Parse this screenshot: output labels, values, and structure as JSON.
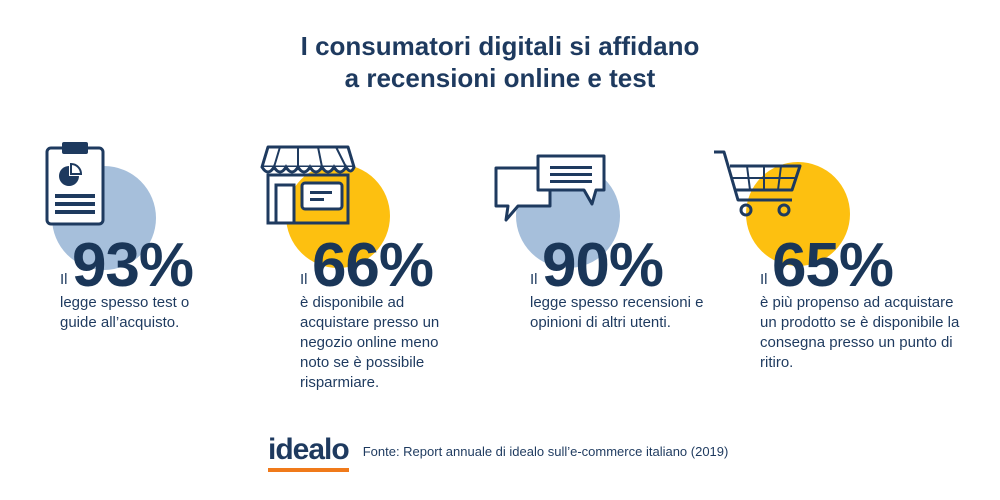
{
  "header": {
    "title_line1": "I consumatori digitali si affidano",
    "title_line2": "a recensioni online e test"
  },
  "colors": {
    "blue_circle": "#a6bfdb",
    "yellow_circle": "#fdc010",
    "navy": "#1e3a5f",
    "logo_underline": "#f07a1a"
  },
  "stats": [
    {
      "prefix": "Il",
      "percent": "93%",
      "description": "legge spesso test o guide all’acquisto.",
      "icon": "clipboard-chart-icon"
    },
    {
      "prefix": "Il",
      "percent": "66%",
      "description": "è disponibile ad acquistare presso un negozio online meno noto se è possibile risparmiare.",
      "icon": "storefront-icon"
    },
    {
      "prefix": "Il",
      "percent": "90%",
      "description": "legge spesso recensioni e opinioni di altri utenti.",
      "icon": "chat-bubbles-icon"
    },
    {
      "prefix": "Il",
      "percent": "65%",
      "description": "è più propenso ad acquistare un prodotto se è disponibile la consegna presso un punto di ritiro.",
      "icon": "shopping-cart-icon"
    }
  ],
  "footer": {
    "logo": "idealo",
    "source": "Fonte: Report annuale di idealo sull’e-commerce italiano (2019)"
  }
}
